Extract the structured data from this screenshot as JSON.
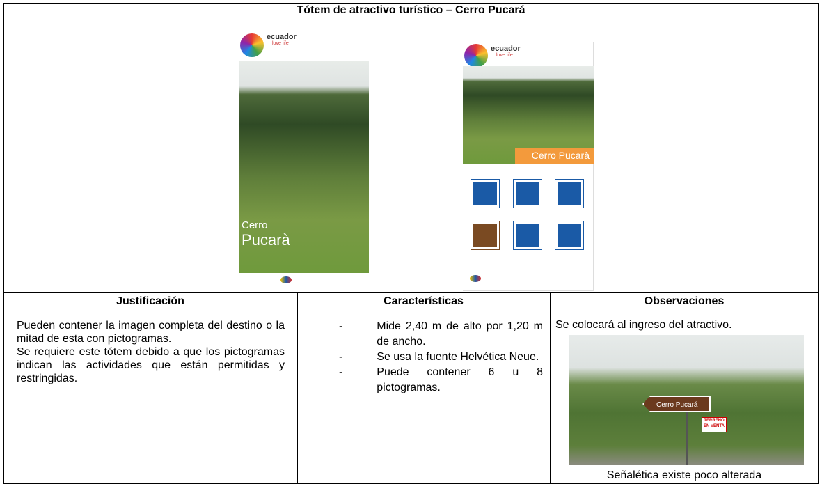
{
  "table": {
    "title": "Tótem de atractivo turístico – Cerro Pucará",
    "totem_full": {
      "brand": "ecuador",
      "tagline": "love life",
      "name_line1": "Cerro",
      "name_line2": "Pucarà"
    },
    "totem_half": {
      "brand": "ecuador",
      "tagline": "love life",
      "banner": "Cerro Pucarà"
    },
    "headers": [
      "Justificación",
      "Características",
      "Observaciones"
    ],
    "justification": [
      "Pueden contener la imagen completa del destino o la mitad de esta con pictogramas.",
      "Se requiere este tótem debido a que los pictogramas indican las actividades que están permitidas y restringidas."
    ],
    "bullet": "-",
    "characteristics": [
      "Mide 2,40 m de alto por 1,20 m de ancho.",
      "Se usa la fuente Helvética Neue.",
      "Puede contener 6 u 8 pictogramas."
    ],
    "observation": "Se colocará al ingreso del atractivo.",
    "photo_sign": "Cerro Pucará",
    "photo_sign2": "TERRENO EN VENTA",
    "caption": "Señalética existe poco alterada"
  }
}
